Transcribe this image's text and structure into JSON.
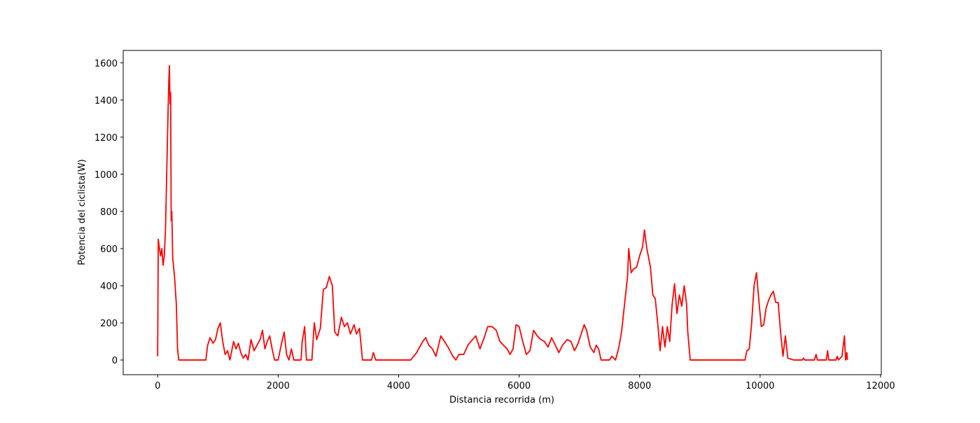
{
  "chart_data": {
    "type": "line",
    "xlabel": "Distancia recorrida (m)",
    "ylabel": "Potencia del ciclista(W)",
    "color": "#ff0000",
    "x": [
      0,
      10,
      30,
      50,
      70,
      90,
      110,
      130,
      150,
      170,
      185,
      195,
      205,
      215,
      225,
      235,
      250,
      280,
      310,
      330,
      350,
      800,
      830,
      870,
      920,
      960,
      1000,
      1040,
      1080,
      1120,
      1160,
      1200,
      1260,
      1300,
      1340,
      1380,
      1420,
      1460,
      1500,
      1550,
      1600,
      1650,
      1700,
      1740,
      1780,
      1820,
      1860,
      1900,
      1940,
      2000,
      2050,
      2100,
      2140,
      2180,
      2220,
      2260,
      2380,
      2400,
      2440,
      2470,
      2560,
      2600,
      2640,
      2700,
      2750,
      2800,
      2850,
      2900,
      2940,
      2990,
      3050,
      3100,
      3150,
      3200,
      3260,
      3300,
      3350,
      3400,
      3550,
      3580,
      3620,
      4200,
      4300,
      4350,
      4400,
      4450,
      4500,
      4560,
      4620,
      4700,
      4760,
      4820,
      4900,
      4950,
      5000,
      5080,
      5150,
      5200,
      5280,
      5350,
      5420,
      5480,
      5550,
      5620,
      5680,
      5740,
      5800,
      5850,
      5900,
      5950,
      6000,
      6060,
      6120,
      6180,
      6240,
      6300,
      6360,
      6420,
      6480,
      6540,
      6600,
      6660,
      6720,
      6800,
      6860,
      6920,
      6980,
      7040,
      7080,
      7120,
      7180,
      7240,
      7280,
      7320,
      7360,
      7500,
      7540,
      7600,
      7650,
      7700,
      7750,
      7800,
      7820,
      7860,
      7900,
      7950,
      8000,
      8050,
      8080,
      8120,
      8180,
      8220,
      8260,
      8300,
      8340,
      8380,
      8420,
      8460,
      8500,
      8540,
      8580,
      8620,
      8660,
      8700,
      8740,
      8780,
      8800,
      8840,
      9750,
      9780,
      9820,
      9860,
      9900,
      9940,
      9980,
      10020,
      10060,
      10100,
      10140,
      10180,
      10220,
      10260,
      10300,
      10340,
      10380,
      10420,
      10460,
      10560,
      10700,
      10720,
      10740,
      10900,
      10930,
      10950,
      11100,
      11120,
      11140,
      11260,
      11280,
      11300,
      11360,
      11400,
      11420,
      11440,
      11450
    ],
    "values": [
      20,
      650,
      600,
      560,
      600,
      510,
      560,
      700,
      1000,
      1300,
      1500,
      1585,
      1380,
      1440,
      750,
      800,
      550,
      450,
      300,
      60,
      0,
      0,
      80,
      120,
      90,
      110,
      170,
      200,
      100,
      30,
      50,
      0,
      100,
      60,
      90,
      40,
      10,
      30,
      0,
      110,
      50,
      80,
      110,
      160,
      60,
      100,
      130,
      60,
      0,
      0,
      80,
      150,
      30,
      0,
      60,
      0,
      0,
      100,
      180,
      0,
      0,
      200,
      110,
      170,
      380,
      390,
      450,
      400,
      150,
      130,
      230,
      180,
      200,
      140,
      190,
      140,
      170,
      0,
      0,
      40,
      0,
      0,
      40,
      70,
      100,
      120,
      80,
      60,
      20,
      130,
      100,
      70,
      20,
      0,
      30,
      30,
      80,
      100,
      130,
      60,
      120,
      180,
      180,
      160,
      100,
      80,
      60,
      30,
      60,
      190,
      180,
      100,
      30,
      50,
      160,
      130,
      110,
      100,
      70,
      120,
      80,
      40,
      80,
      110,
      100,
      50,
      90,
      150,
      190,
      160,
      70,
      40,
      80,
      60,
      0,
      0,
      20,
      0,
      60,
      150,
      300,
      450,
      600,
      470,
      490,
      500,
      560,
      610,
      700,
      600,
      500,
      350,
      330,
      200,
      50,
      180,
      70,
      180,
      100,
      300,
      410,
      250,
      350,
      290,
      400,
      300,
      150,
      0,
      0,
      50,
      60,
      200,
      400,
      470,
      320,
      180,
      190,
      280,
      320,
      350,
      370,
      310,
      310,
      150,
      20,
      130,
      10,
      0,
      0,
      10,
      0,
      0,
      30,
      0,
      0,
      50,
      0,
      0,
      20,
      0,
      20,
      130,
      0,
      40,
      0
    ],
    "xlim": [
      -572,
      12012
    ],
    "ylim": [
      -79,
      1667
    ],
    "xticks": [
      0,
      2000,
      4000,
      6000,
      8000,
      10000,
      12000
    ],
    "yticks": [
      0,
      200,
      400,
      600,
      800,
      1000,
      1200,
      1400,
      1600
    ]
  }
}
